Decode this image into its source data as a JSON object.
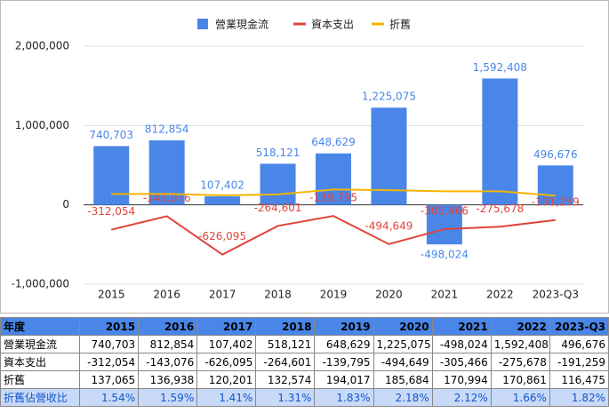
{
  "chart_data": {
    "type": "combo",
    "categories": [
      "2015",
      "2016",
      "2017",
      "2018",
      "2019",
      "2020",
      "2021",
      "2022",
      "2023-Q3"
    ],
    "ylim": [
      -1000000,
      2000000
    ],
    "yticks": [
      {
        "value": -1000000,
        "label": "-1,000,000"
      },
      0,
      {
        "value": 1000000,
        "label": "1,000,000"
      },
      {
        "value": 2000000,
        "label": "2,000,000"
      }
    ],
    "grid": true,
    "legend": "top",
    "series": [
      {
        "name": "營業現金流",
        "kind": "bar",
        "color": "#4a86e8",
        "values": [
          740703,
          812854,
          107402,
          518121,
          648629,
          1225075,
          -498024,
          1592408,
          496676
        ],
        "value_labels": [
          "740,703",
          "812,854",
          "107,402",
          "518,121",
          "648,629",
          "1,225,075",
          "-498,024",
          "1,592,408",
          "496,676"
        ]
      },
      {
        "name": "資本支出",
        "kind": "line",
        "color": "#e0443a",
        "values": [
          -312054,
          -143076,
          -626095,
          -264601,
          -139795,
          -494649,
          -305466,
          -275678,
          -191259
        ],
        "value_labels": [
          "-312,054",
          "-143,076",
          "-626,095",
          "-264,601",
          "-139,795",
          "-494,649",
          "-305,466",
          "-275,678",
          "-191,259"
        ]
      },
      {
        "name": "折舊",
        "kind": "line",
        "color": "#f4b400",
        "values": [
          137065,
          136938,
          120201,
          132574,
          194017,
          185684,
          170994,
          170861,
          116475
        ],
        "value_labels": [
          "137,065",
          "136,938",
          "120,201",
          "132,574",
          "194,017",
          "185,684",
          "170,994",
          "170,861",
          "116,475"
        ]
      }
    ]
  },
  "table": {
    "corner": "年度",
    "ratio_row": {
      "label": "折舊佔營收比",
      "values": [
        "1.54%",
        "1.59%",
        "1.41%",
        "1.31%",
        "1.83%",
        "2.18%",
        "2.12%",
        "1.66%",
        "1.82%"
      ]
    }
  }
}
